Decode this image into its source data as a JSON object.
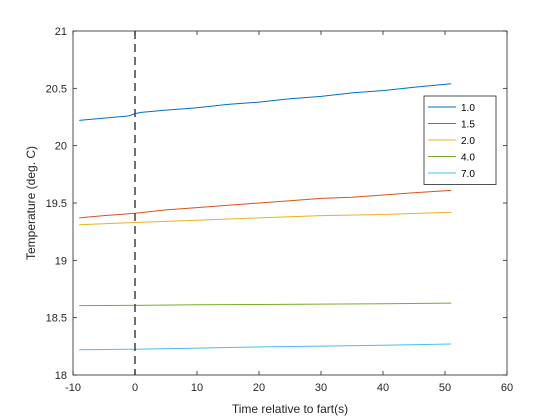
{
  "chart_data": {
    "type": "line",
    "xlabel": "Time relative to fart(s)",
    "ylabel": "Temperature (deg. C)",
    "xlim": [
      -10,
      60
    ],
    "ylim": [
      18,
      21
    ],
    "xticks": [
      -10,
      0,
      10,
      20,
      30,
      40,
      50,
      60
    ],
    "yticks": [
      18,
      18.5,
      19,
      19.5,
      20,
      20.5,
      21
    ],
    "ytick_labels": [
      "18",
      "18.5",
      "19",
      "19.5",
      "20",
      "20.5",
      "21"
    ],
    "grid": false,
    "legend_position": "right",
    "vertical_marker": {
      "x": 0,
      "style": "dashed",
      "color": "#404040"
    },
    "series": [
      {
        "name": "1.0",
        "color": "#0072BD",
        "x": [
          -9,
          -5,
          -1,
          0,
          1,
          5,
          10,
          15,
          20,
          25,
          30,
          35,
          40,
          45,
          51
        ],
        "y": [
          20.22,
          20.24,
          20.26,
          20.28,
          20.29,
          20.31,
          20.33,
          20.36,
          20.38,
          20.41,
          20.43,
          20.46,
          20.48,
          20.51,
          20.54
        ]
      },
      {
        "name": "1.5",
        "color": "#D95319",
        "x": [
          -9,
          -5,
          0,
          5,
          10,
          15,
          20,
          25,
          30,
          35,
          40,
          45,
          51
        ],
        "y": [
          19.37,
          19.39,
          19.41,
          19.44,
          19.46,
          19.48,
          19.5,
          19.52,
          19.54,
          19.55,
          19.57,
          19.59,
          19.61
        ]
      },
      {
        "name": "2.0",
        "color": "#EDB120",
        "x": [
          -9,
          0,
          10,
          20,
          30,
          40,
          51
        ],
        "y": [
          19.31,
          19.33,
          19.35,
          19.37,
          19.39,
          19.4,
          19.42
        ]
      },
      {
        "name": "4.0",
        "color": "#77AC30",
        "x": [
          -9,
          0,
          10,
          20,
          30,
          40,
          51
        ],
        "y": [
          18.605,
          18.607,
          18.612,
          18.615,
          18.618,
          18.622,
          18.627
        ]
      },
      {
        "name": "7.0",
        "color": "#4DBEEE",
        "x": [
          -9,
          0,
          10,
          20,
          30,
          40,
          51
        ],
        "y": [
          18.22,
          18.225,
          18.235,
          18.245,
          18.252,
          18.26,
          18.27
        ]
      }
    ]
  }
}
